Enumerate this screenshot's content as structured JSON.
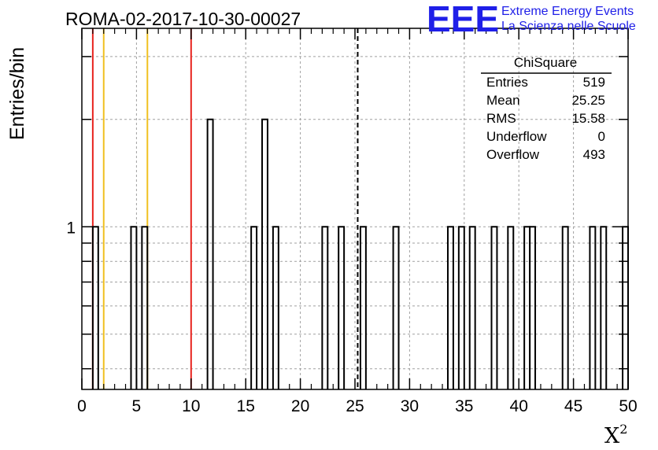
{
  "run_title": "ROMA-02-2017-10-30-00027",
  "brand": {
    "logo": "EEE",
    "line1": "Extreme Energy Events",
    "line2": "La Scienza nelle Scuole",
    "color": "#1f1fe8"
  },
  "chart_data": {
    "type": "histogram",
    "title": "ROMA-02-2017-10-30-00027",
    "ylabel": "Entries/bin",
    "xlabel_base": "X",
    "xlabel_sup": "2",
    "y_scale": "log",
    "xlim": [
      0,
      50
    ],
    "ylim": [
      0.35,
      3.6
    ],
    "bin_width": 0.5,
    "x_ticks": [
      0,
      5,
      10,
      15,
      20,
      25,
      30,
      35,
      40,
      45,
      50
    ],
    "x_tick_labels": [
      "0",
      "5",
      "10",
      "15",
      "20",
      "25",
      "30",
      "35",
      "40",
      "45",
      "50"
    ],
    "y_ticks": [
      1
    ],
    "y_tick_labels": [
      "1"
    ],
    "grid": true,
    "line_color": "#000000",
    "bins": [
      {
        "x": 1.0,
        "count": 1
      },
      {
        "x": 4.5,
        "count": 1
      },
      {
        "x": 5.5,
        "count": 1
      },
      {
        "x": 11.5,
        "count": 2
      },
      {
        "x": 15.5,
        "count": 1
      },
      {
        "x": 16.5,
        "count": 2
      },
      {
        "x": 17.5,
        "count": 1
      },
      {
        "x": 22.0,
        "count": 1
      },
      {
        "x": 23.5,
        "count": 1
      },
      {
        "x": 25.5,
        "count": 1
      },
      {
        "x": 28.5,
        "count": 1
      },
      {
        "x": 33.5,
        "count": 1
      },
      {
        "x": 34.5,
        "count": 1
      },
      {
        "x": 35.5,
        "count": 1
      },
      {
        "x": 37.5,
        "count": 1
      },
      {
        "x": 39.0,
        "count": 1
      },
      {
        "x": 40.5,
        "count": 1
      },
      {
        "x": 41.0,
        "count": 1
      },
      {
        "x": 44.0,
        "count": 1
      },
      {
        "x": 46.5,
        "count": 1
      },
      {
        "x": 47.5,
        "count": 1
      },
      {
        "x": 49.5,
        "count": 1
      }
    ],
    "vertical_lines": [
      {
        "x": 1.0,
        "color": "#e8231e",
        "style": "solid"
      },
      {
        "x": 2.0,
        "color": "#f0c020",
        "style": "solid"
      },
      {
        "x": 6.0,
        "color": "#f0c020",
        "style": "solid"
      },
      {
        "x": 10.0,
        "color": "#e8231e",
        "style": "solid"
      },
      {
        "x": 25.25,
        "color": "#000000",
        "style": "dashed"
      }
    ],
    "stats_box": {
      "title": "ChiSquare",
      "rows": [
        {
          "label": "Entries",
          "value": "519"
        },
        {
          "label": "Mean",
          "value": "25.25"
        },
        {
          "label": "RMS",
          "value": "15.58"
        },
        {
          "label": "Underflow",
          "value": "0"
        },
        {
          "label": "Overflow",
          "value": "493"
        }
      ]
    }
  }
}
